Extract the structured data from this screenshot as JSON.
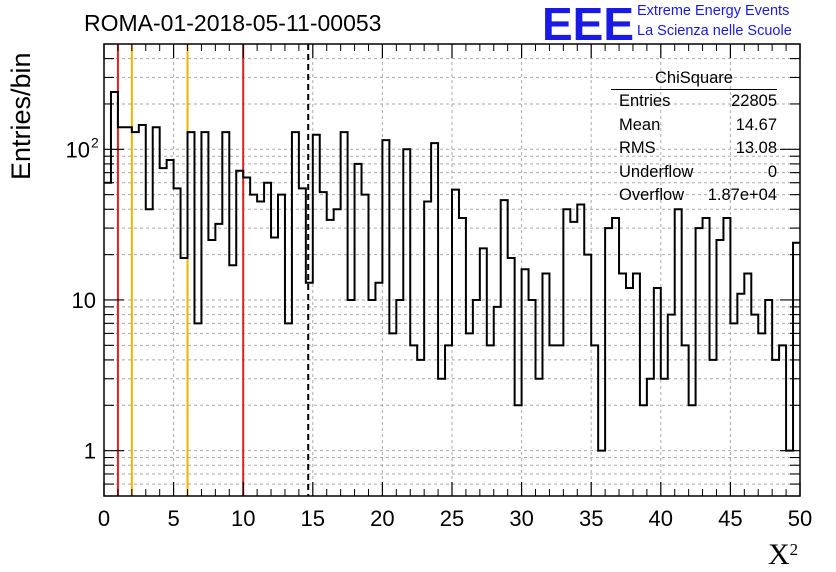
{
  "header": {
    "title": "ROMA-01-2018-05-11-00053",
    "logo_text": "EEE",
    "brand_line1": "Extreme Energy Events",
    "brand_line2": "La Scienza nelle Scuole"
  },
  "stats_box": {
    "name": "ChiSquare",
    "rows": [
      {
        "label": "Entries",
        "value": "22805"
      },
      {
        "label": "Mean",
        "value": "14.67"
      },
      {
        "label": "RMS",
        "value": "13.08"
      },
      {
        "label": "Underflow",
        "value": "0"
      },
      {
        "label": "Overflow",
        "value": "1.87e+04"
      }
    ]
  },
  "colors": {
    "logo": "#1a1ae6",
    "red_cut": "#e02020",
    "orange_cut": "#f0b400",
    "histogram": "#000000",
    "grid": "#aaaaaa"
  },
  "chart_data": {
    "type": "histogram",
    "title": "ROMA-01-2018-05-11-00053",
    "xlabel": "Χ",
    "xlabel_superscript": "2",
    "ylabel": "Entries/bin",
    "xlim": [
      0,
      50
    ],
    "ylim": [
      0.5,
      500
    ],
    "yscale": "log",
    "grid": true,
    "bin_width": 0.5,
    "x_ticks": [
      "0",
      "5",
      "10",
      "15",
      "20",
      "25",
      "30",
      "35",
      "40",
      "45",
      "50"
    ],
    "y_ticks": [
      {
        "value": 1,
        "label": "1"
      },
      {
        "value": 10,
        "label": "10"
      },
      {
        "value": 100,
        "label": "10",
        "exponent": "2"
      }
    ],
    "vertical_lines": [
      {
        "x": 1,
        "color": "#e02020",
        "style": "solid"
      },
      {
        "x": 2,
        "color": "#f0b400",
        "style": "solid"
      },
      {
        "x": 6,
        "color": "#f0b400",
        "style": "solid"
      },
      {
        "x": 10,
        "color": "#e02020",
        "style": "solid"
      },
      {
        "x": 14.67,
        "color": "#000000",
        "style": "dashed"
      }
    ],
    "values": [
      60,
      240,
      140,
      140,
      130,
      145,
      40,
      140,
      75,
      85,
      55,
      19,
      130,
      7,
      130,
      25,
      32,
      130,
      17,
      72,
      65,
      50,
      45,
      60,
      26,
      50,
      7,
      130,
      55,
      13,
      125,
      52,
      34,
      40,
      130,
      10,
      80,
      50,
      10,
      13,
      115,
      6,
      10,
      100,
      5,
      4,
      45,
      110,
      3,
      5,
      54,
      35,
      6,
      10,
      22,
      5,
      9,
      46,
      19,
      2,
      16,
      10,
      3,
      15,
      5,
      5,
      40,
      33,
      43,
      20,
      5,
      1,
      30,
      35,
      15,
      12,
      15,
      2,
      3,
      12,
      3,
      8,
      40,
      5,
      2,
      30,
      35,
      4,
      25,
      35,
      7,
      11,
      15,
      8,
      6,
      10,
      4,
      5,
      1,
      24
    ]
  }
}
